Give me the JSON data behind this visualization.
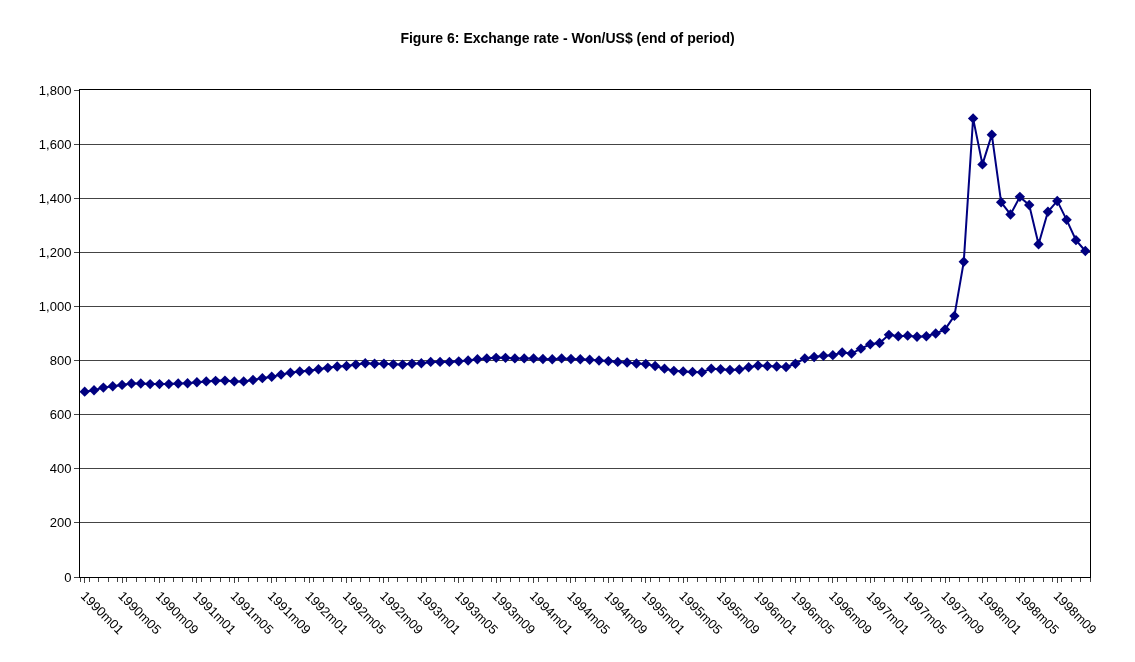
{
  "chart_data": {
    "type": "line",
    "title": "Figure 6: Exchange rate - Won/US$ (end of period)",
    "categories": [
      "1990m01",
      null,
      null,
      null,
      "1990m05",
      null,
      null,
      null,
      "1990m09",
      null,
      null,
      null,
      "1991m01",
      null,
      null,
      null,
      "1991m05",
      null,
      null,
      null,
      "1991m09",
      null,
      null,
      null,
      "1992m01",
      null,
      null,
      null,
      "1992m05",
      null,
      null,
      null,
      "1992m09",
      null,
      null,
      null,
      "1993m01",
      null,
      null,
      null,
      "1993m05",
      null,
      null,
      null,
      "1993m09",
      null,
      null,
      null,
      "1994m01",
      null,
      null,
      null,
      "1994m05",
      null,
      null,
      null,
      "1994m09",
      null,
      null,
      null,
      "1995m01",
      null,
      null,
      null,
      "1995m05",
      null,
      null,
      null,
      "1995m09",
      null,
      null,
      null,
      "1996m01",
      null,
      null,
      null,
      "1996m05",
      null,
      null,
      null,
      "1996m09",
      null,
      null,
      null,
      "1997m01",
      null,
      null,
      null,
      "1997m05",
      null,
      null,
      null,
      "1997m09",
      null,
      null,
      null,
      "1998m01",
      null,
      null,
      null,
      "1998m05",
      null,
      null,
      null,
      "1998m09",
      null,
      null,
      null
    ],
    "series": [
      {
        "color": "#000080",
        "values": [
          685,
          690,
          700,
          705,
          710,
          715,
          715,
          713,
          713,
          713,
          715,
          716,
          720,
          723,
          725,
          726,
          723,
          723,
          728,
          735,
          740,
          748,
          755,
          760,
          762,
          768,
          773,
          778,
          780,
          785,
          790,
          788,
          788,
          786,
          785,
          788,
          790,
          795,
          795,
          795,
          797,
          800,
          805,
          808,
          810,
          810,
          808,
          808,
          808,
          806,
          805,
          808,
          806,
          805,
          803,
          800,
          798,
          795,
          793,
          789,
          787,
          780,
          770,
          762,
          760,
          758,
          757,
          770,
          768,
          765,
          767,
          775,
          782,
          780,
          778,
          776,
          788,
          808,
          813,
          818,
          820,
          830,
          826,
          844,
          860,
          865,
          895,
          890,
          892,
          888,
          890,
          900,
          915,
          965,
          1165,
          1695,
          1525,
          1635,
          1385,
          1340,
          1405,
          1375,
          1230,
          1350,
          1390,
          1320,
          1245,
          1205
        ]
      }
    ],
    "ylim": [
      0,
      1800
    ],
    "yticks": [
      {
        "value": 0,
        "label": "0"
      },
      {
        "value": 200,
        "label": "200"
      },
      {
        "value": 400,
        "label": "400"
      },
      {
        "value": 600,
        "label": "600"
      },
      {
        "value": 800,
        "label": "800"
      },
      {
        "value": 1000,
        "label": "1,000"
      },
      {
        "value": 1200,
        "label": "1,200"
      },
      {
        "value": 1400,
        "label": "1,400"
      },
      {
        "value": 1600,
        "label": "1,600"
      },
      {
        "value": 1800,
        "label": "1,800"
      }
    ],
    "grid": "y",
    "marker": "diamond",
    "line_style": "solid"
  }
}
